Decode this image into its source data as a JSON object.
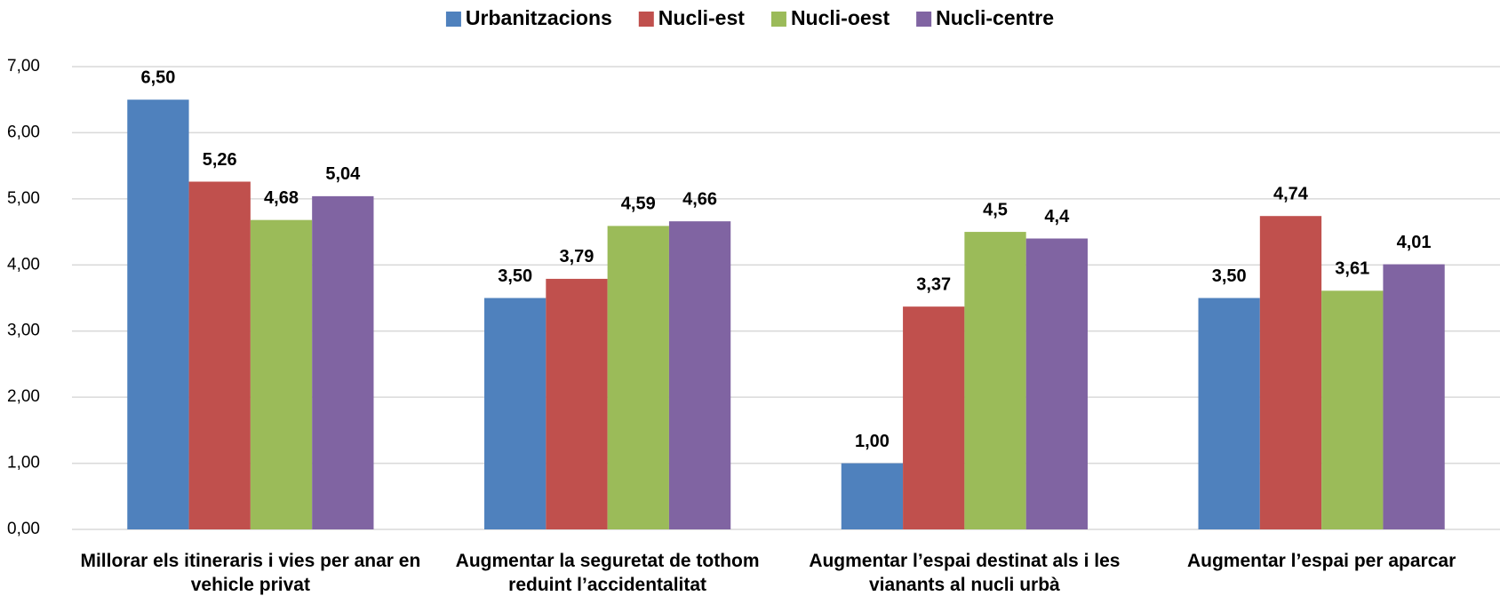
{
  "chart_data": {
    "type": "bar",
    "categories": [
      "Millorar els itineraris i vies per anar en vehicle privat",
      "Augmentar la seguretat de tothom reduint l’accidentalitat",
      "Augmentar l’espai destinat als i les vianants al nucli urbà",
      "Augmentar l’espai per aparcar"
    ],
    "series": [
      {
        "name": "Urbanitzacions",
        "color": "#4f81bd",
        "values": [
          6.5,
          3.5,
          1.0,
          3.5
        ],
        "value_labels": [
          "6,50",
          "3,50",
          "1,00",
          "3,50"
        ]
      },
      {
        "name": "Nucli-est",
        "color": "#c0504d",
        "values": [
          5.26,
          3.79,
          3.37,
          4.74
        ],
        "value_labels": [
          "5,26",
          "3,79",
          "3,37",
          "4,74"
        ]
      },
      {
        "name": "Nucli-oest",
        "color": "#9bbb59",
        "values": [
          4.68,
          4.59,
          4.5,
          3.61
        ],
        "value_labels": [
          "4,68",
          "4,59",
          "4,5",
          "3,61"
        ]
      },
      {
        "name": "Nucli-centre",
        "color": "#8064a2",
        "values": [
          5.04,
          4.66,
          4.4,
          4.01
        ],
        "value_labels": [
          "5,04",
          "4,66",
          "4,4",
          "4,01"
        ]
      }
    ],
    "ylim": [
      0,
      7
    ],
    "yticks": [
      {
        "value": 0,
        "label": "0,00"
      },
      {
        "value": 1,
        "label": "1,00"
      },
      {
        "value": 2,
        "label": "2,00"
      },
      {
        "value": 3,
        "label": "3,00"
      },
      {
        "value": 4,
        "label": "4,00"
      },
      {
        "value": 5,
        "label": "5,00"
      },
      {
        "value": 6,
        "label": "6,00"
      },
      {
        "value": 7,
        "label": "7,00"
      }
    ],
    "grid": true,
    "legend": "top"
  }
}
